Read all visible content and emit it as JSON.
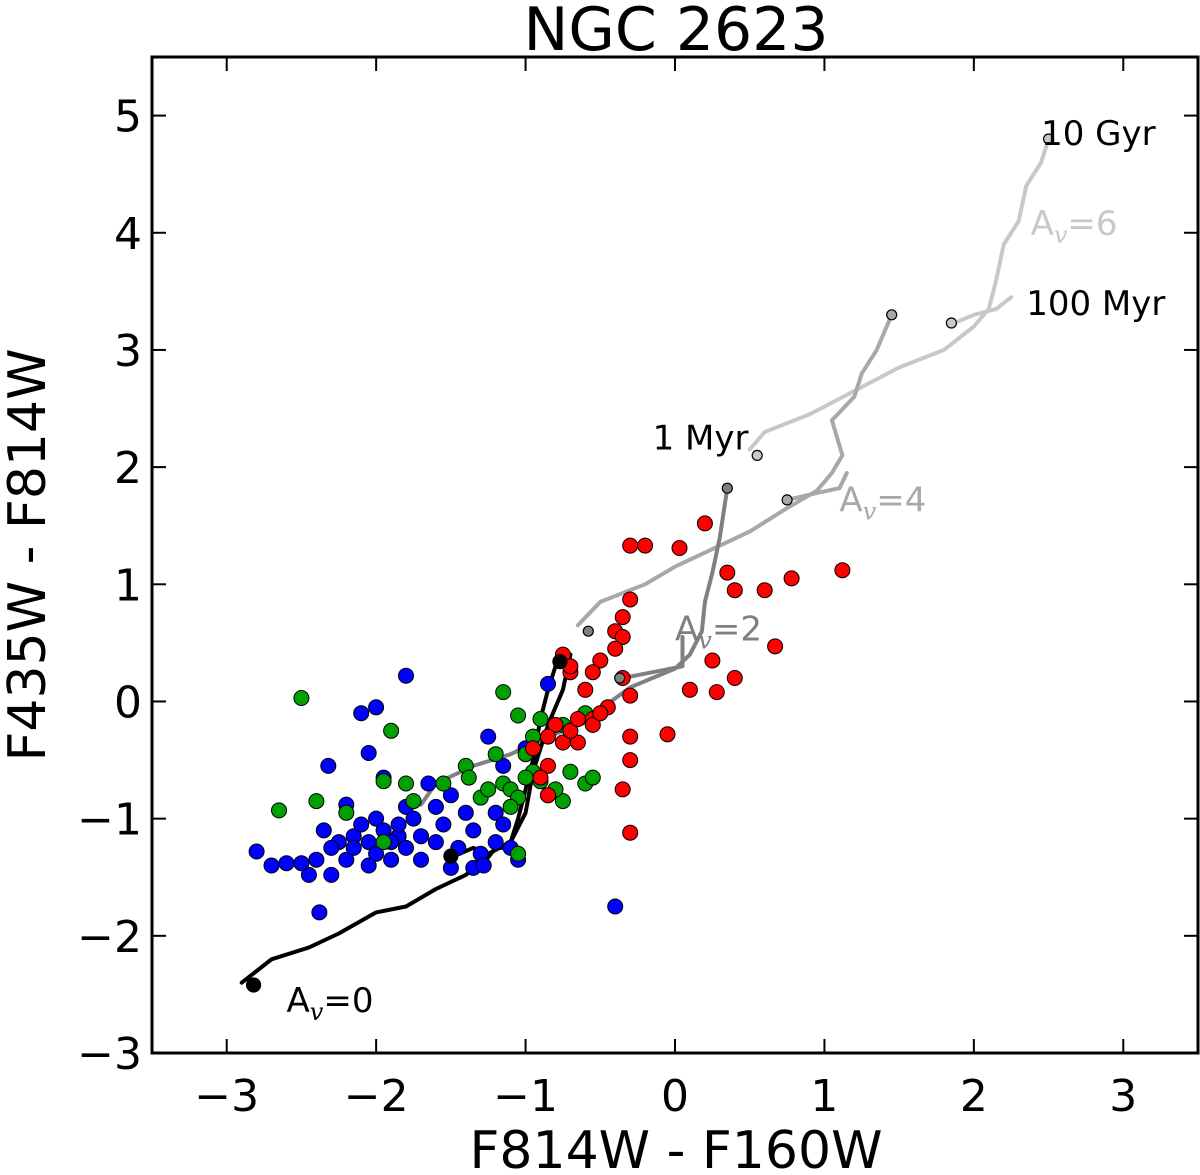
{
  "chart_data": {
    "type": "scatter",
    "title": "NGC 2623",
    "xlabel": "F814W - F160W",
    "ylabel": "F435W - F814W",
    "xlim": [
      -3.5,
      3.5
    ],
    "ylim": [
      -3,
      5.5
    ],
    "xticks": [
      -3,
      -2,
      -1,
      0,
      1,
      2,
      3
    ],
    "xtick_labels": [
      "−3",
      "−2",
      "−1",
      "0",
      "1",
      "2",
      "3"
    ],
    "yticks": [
      -3,
      -2,
      -1,
      0,
      1,
      2,
      3,
      4,
      5
    ],
    "ytick_labels": [
      "−3",
      "−2",
      "−1",
      "0",
      "1",
      "2",
      "3",
      "4",
      "5"
    ],
    "grid": false,
    "series": [
      {
        "name": "blue clusters",
        "color": "#0000ff",
        "points": [
          [
            -2.8,
            -1.28
          ],
          [
            -2.38,
            -1.8
          ],
          [
            -2.32,
            -0.55
          ],
          [
            -2.4,
            -1.35
          ],
          [
            -2.45,
            -1.48
          ],
          [
            -2.3,
            -1.48
          ],
          [
            -2.2,
            -1.35
          ],
          [
            -2.25,
            -1.2
          ],
          [
            -2.15,
            -1.15
          ],
          [
            -2.05,
            -1.2
          ],
          [
            -2.0,
            -1.3
          ],
          [
            -2.1,
            -1.05
          ],
          [
            -2.2,
            -0.88
          ],
          [
            -2.0,
            -1.0
          ],
          [
            -1.95,
            -1.1
          ],
          [
            -1.85,
            -1.15
          ],
          [
            -1.9,
            -1.35
          ],
          [
            -2.5,
            -1.38
          ],
          [
            -2.6,
            -1.38
          ],
          [
            -2.7,
            -1.4
          ],
          [
            -2.3,
            -1.25
          ],
          [
            -2.35,
            -1.1
          ],
          [
            -2.1,
            -0.1
          ],
          [
            -2.0,
            -0.05
          ],
          [
            -2.05,
            -0.44
          ],
          [
            -1.8,
            0.22
          ],
          [
            -1.95,
            -0.65
          ],
          [
            -1.8,
            -0.9
          ],
          [
            -1.75,
            -1.0
          ],
          [
            -1.7,
            -1.15
          ],
          [
            -1.6,
            -1.2
          ],
          [
            -1.55,
            -1.05
          ],
          [
            -1.65,
            -0.7
          ],
          [
            -1.6,
            -0.9
          ],
          [
            -1.5,
            -0.8
          ],
          [
            -1.45,
            -1.25
          ],
          [
            -1.5,
            -1.42
          ],
          [
            -1.4,
            -0.95
          ],
          [
            -1.35,
            -1.1
          ],
          [
            -1.3,
            -1.3
          ],
          [
            -1.25,
            -0.3
          ],
          [
            -1.2,
            -0.95
          ],
          [
            -1.15,
            -1.05
          ],
          [
            -1.2,
            -1.2
          ],
          [
            -1.1,
            -1.25
          ],
          [
            -1.05,
            -1.35
          ],
          [
            -1.15,
            -0.55
          ],
          [
            -1.0,
            -0.4
          ],
          [
            -0.85,
            0.15
          ],
          [
            -0.4,
            -1.75
          ],
          [
            -1.8,
            -1.25
          ],
          [
            -1.9,
            -1.2
          ],
          [
            -1.7,
            -1.35
          ],
          [
            -2.15,
            -1.25
          ],
          [
            -2.05,
            -1.4
          ],
          [
            -1.85,
            -1.05
          ],
          [
            -1.35,
            -1.42
          ],
          [
            -1.28,
            -1.4
          ]
        ]
      },
      {
        "name": "green clusters",
        "color": "#00a000",
        "points": [
          [
            -2.5,
            0.03
          ],
          [
            -2.65,
            -0.93
          ],
          [
            -2.4,
            -0.85
          ],
          [
            -2.2,
            -0.95
          ],
          [
            -1.9,
            -0.25
          ],
          [
            -1.95,
            -1.2
          ],
          [
            -1.95,
            -0.68
          ],
          [
            -1.8,
            -0.7
          ],
          [
            -1.75,
            -0.85
          ],
          [
            -1.55,
            -0.7
          ],
          [
            -1.4,
            -0.55
          ],
          [
            -1.38,
            -0.65
          ],
          [
            -1.3,
            -0.82
          ],
          [
            -1.2,
            -0.45
          ],
          [
            -1.15,
            -0.7
          ],
          [
            -1.1,
            -0.75
          ],
          [
            -1.05,
            -0.82
          ],
          [
            -1.0,
            -0.45
          ],
          [
            -0.95,
            -0.6
          ],
          [
            -0.9,
            -0.68
          ],
          [
            -0.95,
            -0.3
          ],
          [
            -0.9,
            -0.15
          ],
          [
            -0.85,
            -0.8
          ],
          [
            -0.75,
            -0.85
          ],
          [
            -0.7,
            -0.6
          ],
          [
            -0.75,
            -0.2
          ],
          [
            -0.6,
            -0.7
          ],
          [
            -0.55,
            -0.65
          ],
          [
            -1.15,
            0.08
          ],
          [
            -1.05,
            -0.12
          ],
          [
            -1.0,
            -0.65
          ],
          [
            -0.8,
            -0.75
          ],
          [
            -0.6,
            -0.1
          ],
          [
            -1.05,
            -1.3
          ],
          [
            -1.1,
            -0.9
          ],
          [
            -1.25,
            -0.75
          ]
        ]
      },
      {
        "name": "red clusters",
        "color": "#ff0000",
        "points": [
          [
            -0.3,
            1.33
          ],
          [
            -0.2,
            1.33
          ],
          [
            0.03,
            1.31
          ],
          [
            0.2,
            1.52
          ],
          [
            0.25,
            0.35
          ],
          [
            0.1,
            0.1
          ],
          [
            0.4,
            0.95
          ],
          [
            0.6,
            0.95
          ],
          [
            0.78,
            1.05
          ],
          [
            1.12,
            1.12
          ],
          [
            0.67,
            0.47
          ],
          [
            0.4,
            0.2
          ],
          [
            0.28,
            0.08
          ],
          [
            0.35,
            1.1
          ],
          [
            -0.3,
            0.87
          ],
          [
            -0.35,
            0.72
          ],
          [
            -0.4,
            0.6
          ],
          [
            -0.35,
            0.55
          ],
          [
            -0.35,
            0.2
          ],
          [
            -0.3,
            0.05
          ],
          [
            -0.4,
            0.45
          ],
          [
            -0.5,
            0.35
          ],
          [
            -0.55,
            0.25
          ],
          [
            -0.6,
            0.1
          ],
          [
            -0.7,
            0.25
          ],
          [
            -0.75,
            0.4
          ],
          [
            -0.7,
            0.3
          ],
          [
            -0.8,
            -0.2
          ],
          [
            -0.85,
            -0.3
          ],
          [
            -0.85,
            -0.55
          ],
          [
            -0.9,
            -0.65
          ],
          [
            -0.95,
            -0.4
          ],
          [
            -0.75,
            -0.35
          ],
          [
            -0.65,
            -0.35
          ],
          [
            -0.7,
            -0.25
          ],
          [
            -0.55,
            -0.15
          ],
          [
            -0.45,
            -0.05
          ],
          [
            -0.3,
            -0.3
          ],
          [
            -0.3,
            -0.5
          ],
          [
            -0.35,
            -0.75
          ],
          [
            -0.3,
            -1.12
          ],
          [
            -0.05,
            -0.28
          ],
          [
            -0.85,
            -0.8
          ],
          [
            -0.55,
            -0.2
          ],
          [
            -0.5,
            -0.1
          ],
          [
            -0.65,
            -0.15
          ]
        ]
      }
    ],
    "tracks": [
      {
        "name": "A_v=0",
        "color": "#000000",
        "points": [
          [
            -2.9,
            -2.4
          ],
          [
            -2.7,
            -2.2
          ],
          [
            -2.45,
            -2.1
          ],
          [
            -2.25,
            -1.98
          ],
          [
            -2.0,
            -1.8
          ],
          [
            -1.8,
            -1.75
          ],
          [
            -1.6,
            -1.6
          ],
          [
            -1.4,
            -1.48
          ],
          [
            -1.25,
            -1.33
          ],
          [
            -1.2,
            -1.25
          ],
          [
            -1.15,
            -1.25
          ],
          [
            -1.1,
            -1.2
          ],
          [
            -1.05,
            -1.0
          ],
          [
            -1.0,
            -0.75
          ],
          [
            -0.95,
            -0.5
          ],
          [
            -0.9,
            -0.15
          ],
          [
            -0.85,
            0.1
          ],
          [
            -0.8,
            0.3
          ],
          [
            -0.75,
            0.35
          ],
          [
            -0.7,
            0.25
          ]
        ],
        "branch": [
          [
            -1.5,
            -1.33
          ],
          [
            -1.35,
            -1.25
          ],
          [
            -1.25,
            -1.3
          ],
          [
            -1.1,
            -1.2
          ],
          [
            -1.0,
            -0.95
          ],
          [
            -0.95,
            -0.6
          ],
          [
            -0.85,
            -0.2
          ],
          [
            -0.75,
            0.1
          ],
          [
            -0.7,
            0.4
          ]
        ],
        "markers": [
          [
            -2.82,
            -2.42
          ],
          [
            -1.5,
            -1.32
          ],
          [
            -0.77,
            0.34
          ]
        ]
      },
      {
        "name": "A_v=2",
        "color": "#808080",
        "points": [
          [
            -1.7,
            -0.88
          ],
          [
            -1.6,
            -0.7
          ],
          [
            -1.35,
            -0.55
          ],
          [
            -1.1,
            -0.45
          ],
          [
            -0.85,
            -0.3
          ],
          [
            -0.6,
            -0.18
          ],
          [
            -0.45,
            -0.02
          ],
          [
            -0.3,
            0.12
          ],
          [
            -0.15,
            0.2
          ],
          [
            0.0,
            0.28
          ],
          [
            0.1,
            0.4
          ],
          [
            0.18,
            0.6
          ],
          [
            0.2,
            0.85
          ],
          [
            0.25,
            1.1
          ],
          [
            0.3,
            1.4
          ],
          [
            0.35,
            1.82
          ]
        ],
        "branch": [
          [
            -0.35,
            0.2
          ],
          [
            -0.15,
            0.25
          ],
          [
            0.05,
            0.3
          ],
          [
            0.05,
            0.55
          ]
        ],
        "markers": [
          [
            -0.58,
            0.6
          ],
          [
            -0.37,
            0.2
          ],
          [
            0.35,
            1.82
          ]
        ]
      },
      {
        "name": "A_v=4",
        "color": "#a8a8a8",
        "points": [
          [
            -0.65,
            0.65
          ],
          [
            -0.5,
            0.85
          ],
          [
            -0.2,
            1.0
          ],
          [
            0.0,
            1.15
          ],
          [
            0.25,
            1.3
          ],
          [
            0.5,
            1.45
          ],
          [
            0.75,
            1.65
          ],
          [
            0.95,
            1.8
          ],
          [
            1.05,
            1.95
          ],
          [
            1.12,
            2.1
          ],
          [
            1.05,
            2.4
          ],
          [
            1.2,
            2.6
          ],
          [
            1.25,
            2.8
          ],
          [
            1.35,
            3.0
          ],
          [
            1.45,
            3.3
          ]
        ],
        "branch": [
          [
            0.75,
            1.72
          ],
          [
            0.95,
            1.78
          ],
          [
            1.1,
            1.82
          ],
          [
            1.15,
            1.95
          ]
        ],
        "markers": [
          [
            0.75,
            1.72
          ],
          [
            1.45,
            3.3
          ]
        ]
      },
      {
        "name": "A_v=6",
        "color": "#c8c8c8",
        "points": [
          [
            0.5,
            2.15
          ],
          [
            0.6,
            2.3
          ],
          [
            0.9,
            2.45
          ],
          [
            1.2,
            2.65
          ],
          [
            1.5,
            2.85
          ],
          [
            1.8,
            3.0
          ],
          [
            2.0,
            3.2
          ],
          [
            2.1,
            3.35
          ],
          [
            2.15,
            3.6
          ],
          [
            2.2,
            3.9
          ],
          [
            2.3,
            4.1
          ],
          [
            2.35,
            4.4
          ],
          [
            2.45,
            4.6
          ],
          [
            2.5,
            4.8
          ]
        ],
        "branch": [
          [
            1.85,
            3.22
          ],
          [
            2.0,
            3.3
          ],
          [
            2.15,
            3.35
          ],
          [
            2.25,
            3.45
          ]
        ],
        "markers": [
          [
            1.85,
            3.23
          ],
          [
            0.55,
            2.1
          ],
          [
            2.5,
            4.8
          ]
        ]
      }
    ],
    "annotations": [
      {
        "text": "10 Gyr",
        "x": 2.45,
        "y": 4.75,
        "color": "#000000"
      },
      {
        "text": "100 Myr",
        "x": 2.35,
        "y": 3.3,
        "color": "#000000"
      },
      {
        "text": "1 Myr",
        "x": -0.15,
        "y": 2.15,
        "color": "#000000"
      },
      {
        "text": "A",
        "sub": "v",
        "tail": "=0",
        "x": -2.6,
        "y": -2.65,
        "color": "#000000"
      },
      {
        "text": "A",
        "sub": "v",
        "tail": "=2",
        "x": 0.0,
        "y": 0.52,
        "color": "#808080"
      },
      {
        "text": "A",
        "sub": "v",
        "tail": "=4",
        "x": 1.1,
        "y": 1.62,
        "color": "#a8a8a8"
      },
      {
        "text": "A",
        "sub": "v",
        "tail": "=6",
        "x": 2.38,
        "y": 3.98,
        "color": "#c8c8c8"
      }
    ]
  }
}
